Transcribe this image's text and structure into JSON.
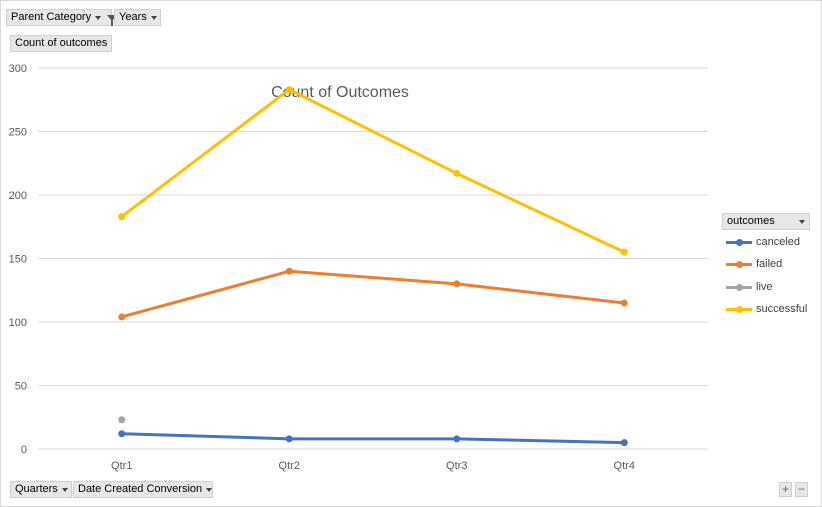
{
  "filters": {
    "parent_category": "Parent Category",
    "years": "Years"
  },
  "value_field": "Count of outcomes",
  "axis_fields": {
    "quarters": "Quarters",
    "date_created": "Date Created Conversion"
  },
  "legend": {
    "header": "outcomes"
  },
  "zoom": {
    "plus": "+",
    "minus": "−"
  },
  "colors": {
    "canceled": "#4472c4",
    "failed": "#ed7d31",
    "live": "#a5a5a5",
    "successful": "#ffc000",
    "grid": "#d9d9d9"
  },
  "chart_data": {
    "type": "line",
    "title": "Count of Outcomes",
    "categories": [
      "Qtr1",
      "Qtr2",
      "Qtr3",
      "Qtr4"
    ],
    "ylim": [
      0,
      300
    ],
    "yticks": [
      0,
      50,
      100,
      150,
      200,
      250,
      300
    ],
    "grid": true,
    "legend_position": "right",
    "series": [
      {
        "name": "canceled",
        "values": [
          12,
          8,
          8,
          5
        ]
      },
      {
        "name": "failed",
        "values": [
          104,
          140,
          130,
          115
        ]
      },
      {
        "name": "live",
        "values": [
          23,
          null,
          null,
          null
        ]
      },
      {
        "name": "successful",
        "values": [
          183,
          283,
          217,
          155
        ]
      }
    ]
  }
}
